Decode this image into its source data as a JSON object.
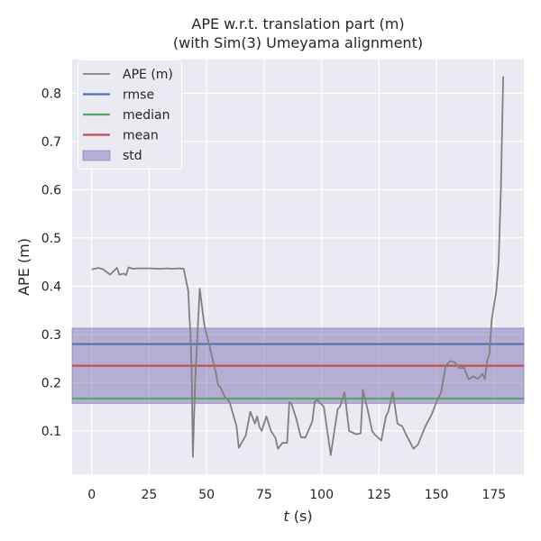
{
  "chart_data": {
    "type": "line",
    "title": "APE w.r.t. translation part (m)",
    "subtitle": "(with Sim(3) Umeyama alignment)",
    "xlabel_var": "t",
    "xlabel_unit": " (s)",
    "ylabel": "APE (m)",
    "xlim": [
      -8.5,
      188
    ],
    "ylim": [
      0.01,
      0.87
    ],
    "x_ticks": [
      0,
      25,
      50,
      75,
      100,
      125,
      150,
      175
    ],
    "y_ticks": [
      0.1,
      0.2,
      0.3,
      0.4,
      0.5,
      0.6,
      0.7,
      0.8
    ],
    "grid": true,
    "legend_position": "top-left",
    "colors": {
      "background": "#eaeaf2",
      "grid": "#ffffff",
      "ape": "#808080",
      "rmse": "#4c72b0",
      "median": "#55a868",
      "mean": "#c44e52",
      "std_fill": "#8172b2"
    },
    "legend": [
      {
        "key": "ape",
        "label": "APE (m)",
        "kind": "line"
      },
      {
        "key": "rmse",
        "label": "rmse",
        "kind": "line"
      },
      {
        "key": "median",
        "label": "median",
        "kind": "line"
      },
      {
        "key": "mean",
        "label": "mean",
        "kind": "line"
      },
      {
        "key": "std_fill",
        "label": "std",
        "kind": "patch"
      }
    ],
    "stats": {
      "rmse": 0.28,
      "median": 0.167,
      "mean": 0.235,
      "std_low": 0.157,
      "std_high": 0.313
    },
    "series": [
      {
        "name": "APE (m)",
        "x": [
          0,
          3,
          5,
          8,
          11,
          12,
          14,
          15,
          16,
          18,
          20,
          25,
          30,
          33,
          35,
          38,
          40,
          42,
          42.5,
          43,
          43.5,
          44,
          45,
          47,
          49,
          52,
          54,
          55,
          56,
          58,
          60,
          63,
          64,
          67,
          69,
          71,
          72,
          73,
          74,
          76,
          78,
          80,
          81,
          83,
          85,
          86,
          87,
          89,
          91,
          93,
          96,
          97,
          98,
          101,
          104,
          107,
          108,
          110,
          112,
          115,
          117,
          118,
          120,
          122,
          123,
          126,
          128,
          129,
          131,
          133,
          134,
          135,
          137,
          140,
          142,
          145,
          148,
          150,
          152,
          154,
          156,
          158,
          160,
          162,
          163,
          164,
          166,
          168,
          170,
          171,
          172,
          173,
          174,
          176,
          177,
          178,
          179
        ],
        "y": [
          0.435,
          0.438,
          0.435,
          0.424,
          0.438,
          0.424,
          0.426,
          0.423,
          0.439,
          0.436,
          0.437,
          0.437,
          0.436,
          0.437,
          0.436,
          0.437,
          0.436,
          0.39,
          0.34,
          0.3,
          0.22,
          0.046,
          0.2,
          0.395,
          0.32,
          0.26,
          0.22,
          0.195,
          0.19,
          0.17,
          0.16,
          0.11,
          0.065,
          0.09,
          0.14,
          0.115,
          0.13,
          0.108,
          0.1,
          0.13,
          0.1,
          0.085,
          0.063,
          0.075,
          0.075,
          0.16,
          0.155,
          0.125,
          0.087,
          0.086,
          0.12,
          0.16,
          0.165,
          0.15,
          0.05,
          0.145,
          0.15,
          0.18,
          0.1,
          0.093,
          0.095,
          0.185,
          0.145,
          0.1,
          0.093,
          0.08,
          0.13,
          0.14,
          0.18,
          0.115,
          0.112,
          0.11,
          0.09,
          0.063,
          0.072,
          0.108,
          0.135,
          0.16,
          0.18,
          0.235,
          0.245,
          0.242,
          0.23,
          0.231,
          0.218,
          0.207,
          0.213,
          0.208,
          0.218,
          0.207,
          0.245,
          0.26,
          0.33,
          0.39,
          0.45,
          0.6,
          0.835
        ]
      }
    ]
  }
}
